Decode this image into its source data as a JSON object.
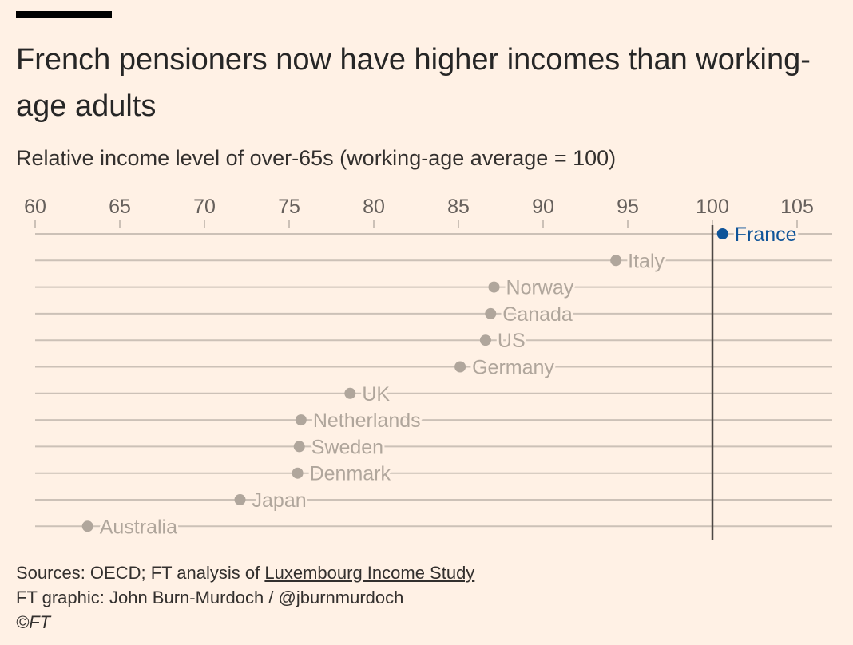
{
  "header": {
    "title": "French pensioners now have higher incomes than working-age adults",
    "subtitle": "Relative income level of over-65s (working-age average = 100)"
  },
  "chart_data": {
    "type": "scatter",
    "title": "French pensioners now have higher incomes than working-age adults",
    "subtitle": "Relative income level of over-65s (working-age average = 100)",
    "xlim": [
      60,
      107
    ],
    "xticks": [
      60,
      65,
      70,
      75,
      80,
      85,
      90,
      95,
      100,
      105
    ],
    "reference_line": 100,
    "highlight_color": "#0F5499",
    "muted_color": "#B0A69C",
    "grid": true,
    "points": [
      {
        "country": "France",
        "value": 100.6,
        "highlight": true
      },
      {
        "country": "Italy",
        "value": 94.3
      },
      {
        "country": "Norway",
        "value": 87.1
      },
      {
        "country": "Canada",
        "value": 86.9
      },
      {
        "country": "US",
        "value": 86.6
      },
      {
        "country": "Germany",
        "value": 85.1
      },
      {
        "country": "UK",
        "value": 78.6
      },
      {
        "country": "Netherlands",
        "value": 75.7
      },
      {
        "country": "Sweden",
        "value": 75.6
      },
      {
        "country": "Denmark",
        "value": 75.5
      },
      {
        "country": "Japan",
        "value": 72.1
      },
      {
        "country": "Australia",
        "value": 63.1
      }
    ]
  },
  "footer": {
    "sources_prefix": "Sources: OECD; FT analysis of ",
    "sources_link": "Luxembourg Income Study",
    "credit": "FT graphic: John Burn-Murdoch / @jburnmurdoch",
    "copyright": "©FT"
  }
}
